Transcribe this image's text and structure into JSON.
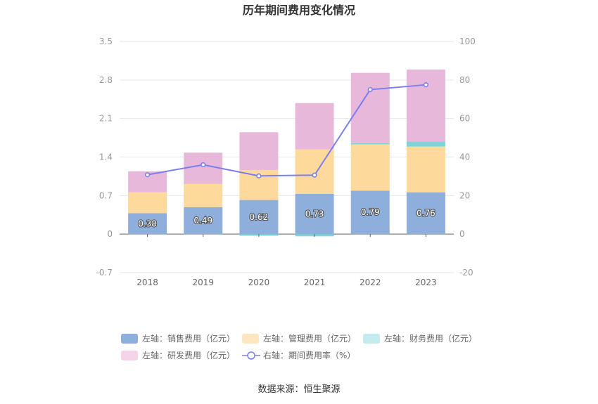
{
  "chart_data": {
    "type": "bar",
    "title": "历年期间费用变化情况",
    "categories": [
      "2018",
      "2019",
      "2020",
      "2021",
      "2022",
      "2023"
    ],
    "stacked": true,
    "series": [
      {
        "name": "左轴：销售费用（亿元）",
        "axis": "left",
        "color": "#8eaedb",
        "values": [
          0.38,
          0.49,
          0.62,
          0.73,
          0.79,
          0.76
        ],
        "labels": [
          "0.38",
          "0.49",
          "0.62",
          "0.73",
          "0.79",
          "0.76"
        ]
      },
      {
        "name": "左轴：管理费用（亿元）",
        "axis": "left",
        "color": "#fdd99b",
        "values": [
          0.38,
          0.42,
          0.54,
          0.81,
          0.84,
          0.83
        ]
      },
      {
        "name": "左轴：财务费用（亿元）",
        "axis": "left",
        "color": "#7fd4da",
        "values": [
          -0.01,
          -0.01,
          -0.03,
          -0.04,
          0.02,
          0.09
        ]
      },
      {
        "name": "左轴：研发费用（亿元）",
        "axis": "left",
        "color": "#e8b8db",
        "values": [
          0.38,
          0.57,
          0.69,
          0.84,
          1.28,
          1.31
        ]
      },
      {
        "name": "右轴：期间费用率（%）",
        "axis": "right",
        "type": "line",
        "color": "#7b7ef0",
        "values": [
          30.8,
          36.0,
          30.2,
          30.6,
          75.0,
          77.5
        ]
      }
    ],
    "left_axis": {
      "min": -0.7,
      "max": 3.5,
      "ticks": [
        "-0.7",
        "0",
        "0.7",
        "1.4",
        "2.1",
        "2.8",
        "3.5"
      ]
    },
    "right_axis": {
      "min": -20,
      "max": 100,
      "ticks": [
        "-20",
        "0",
        "20",
        "40",
        "60",
        "80",
        "100"
      ]
    },
    "legend_position": "bottom",
    "source": "数据来源：恒生聚源"
  }
}
